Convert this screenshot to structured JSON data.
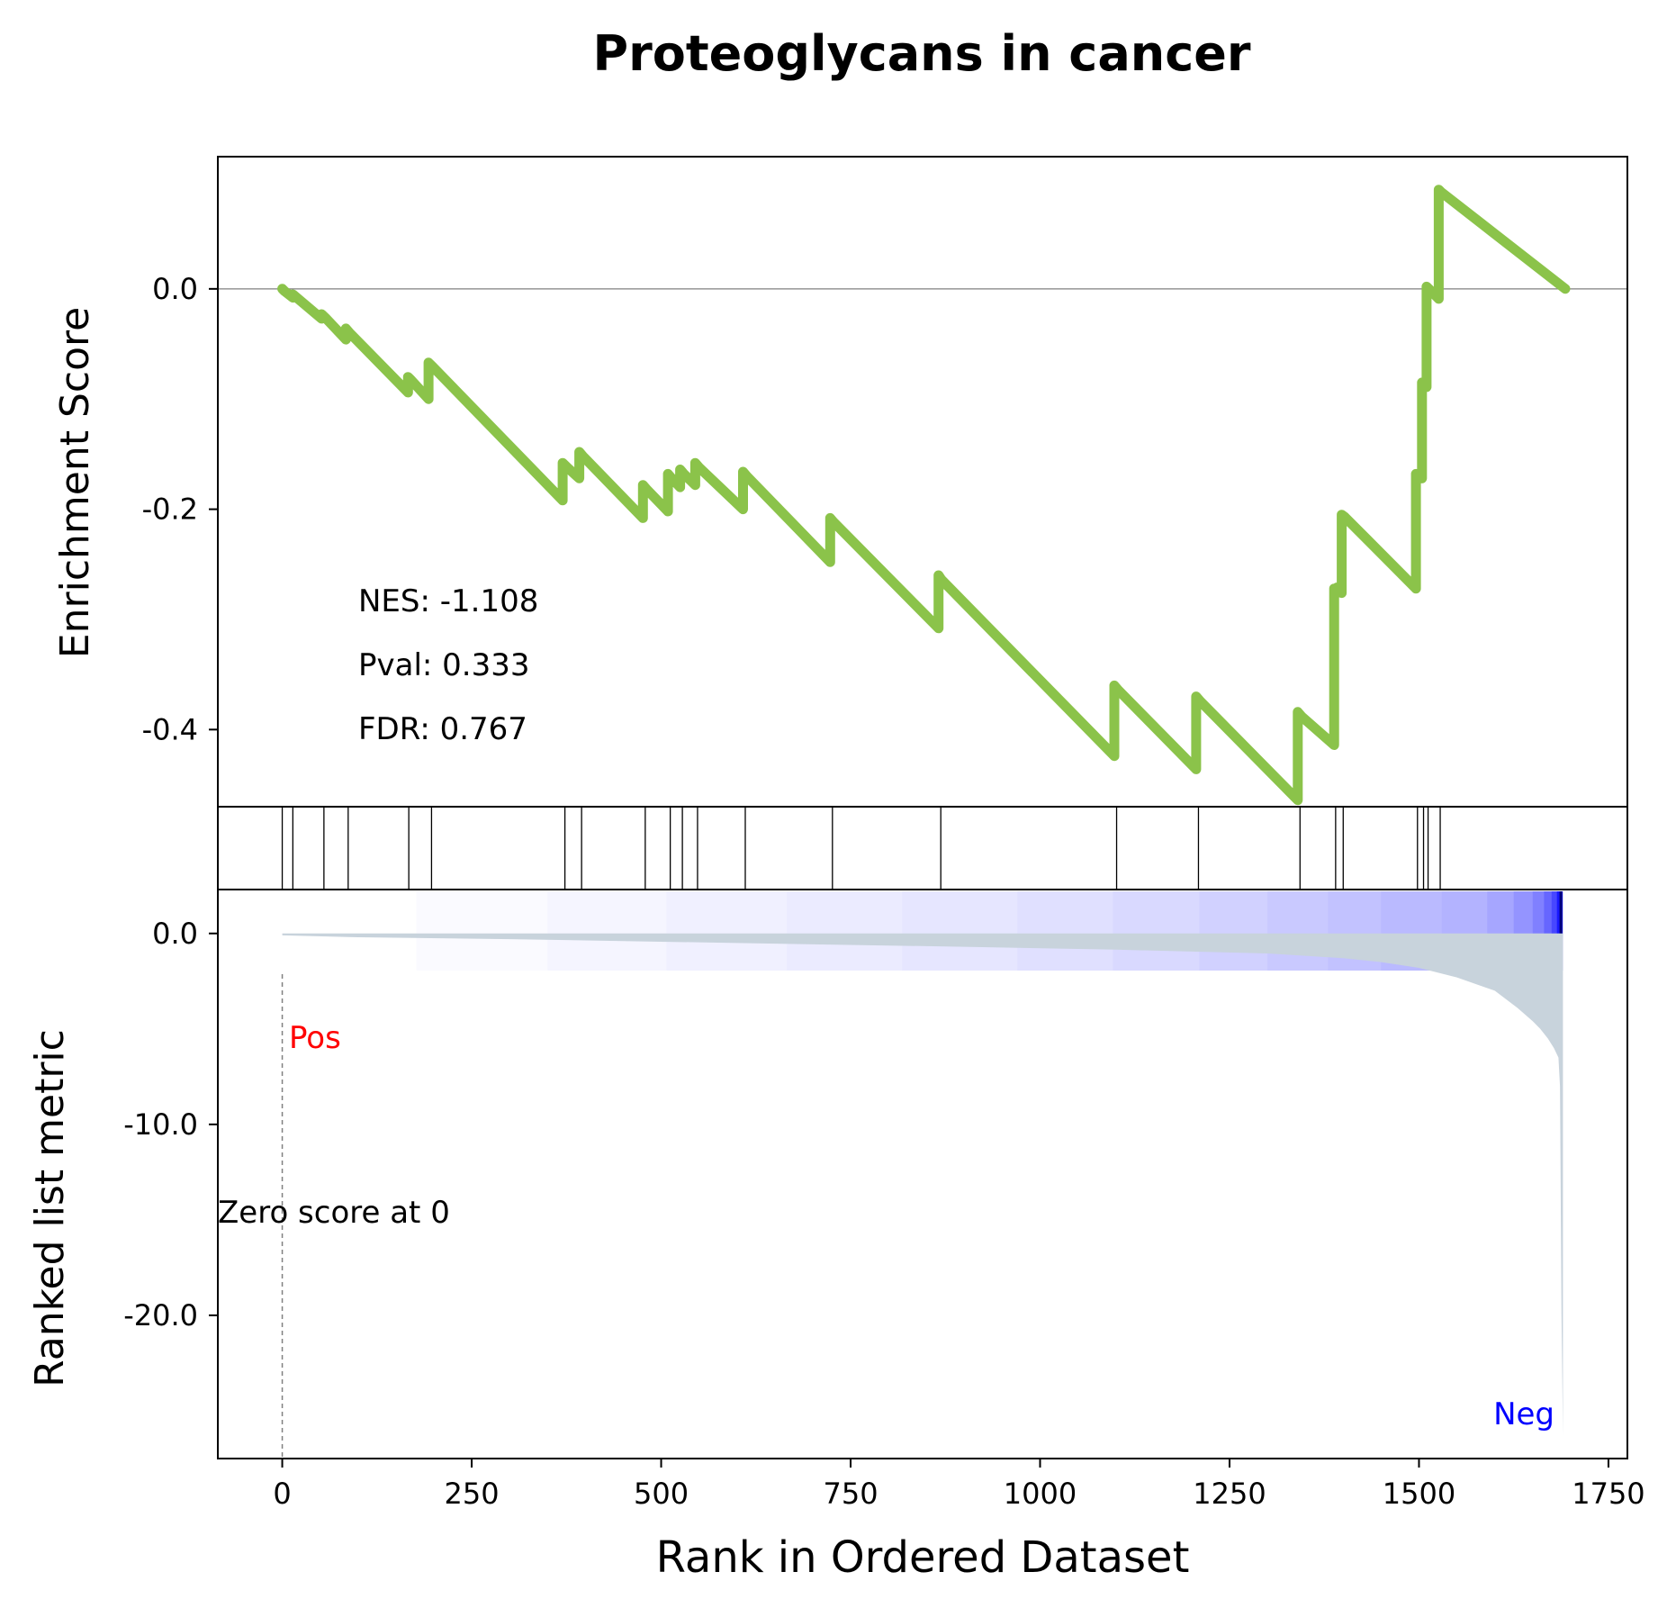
{
  "chart_data": {
    "type": "line",
    "title": "Proteoglycans in cancer",
    "xlabel": "Rank in Ordered Dataset",
    "xlim": [
      -85,
      1775
    ],
    "xticks": [
      0,
      250,
      500,
      750,
      1000,
      1250,
      1500,
      1750
    ],
    "colors": {
      "es_line": "#8BC34A",
      "metric_fill": "#C8D3DC",
      "pos": "#FF0000",
      "neg": "#0000FF",
      "heat_dark": "#0000FF"
    },
    "enrichment": {
      "ylabel": "Enrichment Score",
      "ylim": [
        -0.47,
        0.12
      ],
      "yticks": [
        0.0,
        -0.2,
        -0.4
      ],
      "ytick_labels": [
        "0.0",
        "-0.2",
        "-0.4"
      ],
      "zero_line": 0.0,
      "stats": [
        "NES: -1.108",
        "Pval: 0.333",
        "FDR: 0.767"
      ],
      "x": [
        0,
        3,
        14,
        14,
        52,
        52,
        58,
        84,
        84,
        89,
        166,
        166,
        169,
        193,
        193,
        199,
        370,
        370,
        376,
        392,
        392,
        397,
        476,
        476,
        481,
        509,
        509,
        514,
        525,
        525,
        530,
        545,
        545,
        550,
        608,
        608,
        613,
        723,
        723,
        728,
        866,
        866,
        870,
        1098,
        1098,
        1103,
        1206,
        1206,
        1211,
        1340,
        1340,
        1345,
        1388,
        1388,
        1392,
        1392,
        1396,
        1398,
        1398,
        1402,
        1496,
        1496,
        1499,
        1504,
        1504,
        1507,
        1510,
        1510,
        1513,
        1526,
        1526,
        1529,
        1693
      ],
      "y": [
        0.0,
        -0.002,
        -0.008,
        -0.005,
        -0.027,
        -0.023,
        -0.027,
        -0.046,
        -0.036,
        -0.04,
        -0.094,
        -0.08,
        -0.082,
        -0.1,
        -0.067,
        -0.071,
        -0.192,
        -0.158,
        -0.162,
        -0.172,
        -0.148,
        -0.152,
        -0.208,
        -0.178,
        -0.182,
        -0.202,
        -0.168,
        -0.172,
        -0.18,
        -0.164,
        -0.168,
        -0.178,
        -0.158,
        -0.162,
        -0.2,
        -0.166,
        -0.17,
        -0.248,
        -0.208,
        -0.212,
        -0.308,
        -0.26,
        -0.264,
        -0.424,
        -0.36,
        -0.364,
        -0.436,
        -0.37,
        -0.374,
        -0.464,
        -0.384,
        -0.388,
        -0.414,
        -0.272,
        -0.274,
        -0.271,
        -0.275,
        -0.276,
        -0.205,
        -0.207,
        -0.272,
        -0.168,
        -0.17,
        -0.172,
        -0.085,
        -0.087,
        -0.089,
        0.002,
        0.0,
        -0.009,
        0.09,
        0.088,
        0.0
      ]
    },
    "hits": {
      "x": [
        0,
        14,
        55,
        87,
        167,
        197,
        373,
        395,
        479,
        512,
        528,
        548,
        611,
        726,
        869,
        1101,
        1209,
        1343,
        1390,
        1400,
        1498,
        1506,
        1512,
        1528
      ]
    },
    "heatmap": {
      "x": [
        0,
        177,
        350,
        507,
        666,
        818,
        970,
        1096,
        1210,
        1300,
        1380,
        1450,
        1530,
        1590,
        1625,
        1650,
        1665,
        1675,
        1682,
        1689
      ],
      "intensity": [
        0.0,
        0.02,
        0.04,
        0.06,
        0.08,
        0.1,
        0.12,
        0.15,
        0.18,
        0.21,
        0.24,
        0.27,
        0.3,
        0.35,
        0.42,
        0.5,
        0.6,
        0.72,
        0.9
      ]
    },
    "metric": {
      "ylabel": "Ranked list metric",
      "ylim": [
        -27.5,
        2.3
      ],
      "yticks": [
        0.0,
        -10.0,
        -20.0
      ],
      "ytick_labels": [
        "0.0",
        "-10.0",
        "-20.0"
      ],
      "x": [
        0,
        100,
        300,
        600,
        900,
        1100,
        1300,
        1400,
        1450,
        1500,
        1550,
        1600,
        1630,
        1650,
        1660,
        1670,
        1678,
        1684,
        1686,
        1688,
        1690
      ],
      "values": [
        -0.1,
        -0.2,
        -0.3,
        -0.5,
        -0.7,
        -0.85,
        -1.05,
        -1.3,
        -1.5,
        -1.8,
        -2.3,
        -3.0,
        -3.9,
        -4.6,
        -5.0,
        -5.5,
        -6.0,
        -6.5,
        -8.0,
        -20.0,
        -26.3
      ]
    },
    "annotations": {
      "pos": "Pos",
      "neg": "Neg",
      "zero_score": "Zero score at 0",
      "zero_rank": 0
    }
  }
}
